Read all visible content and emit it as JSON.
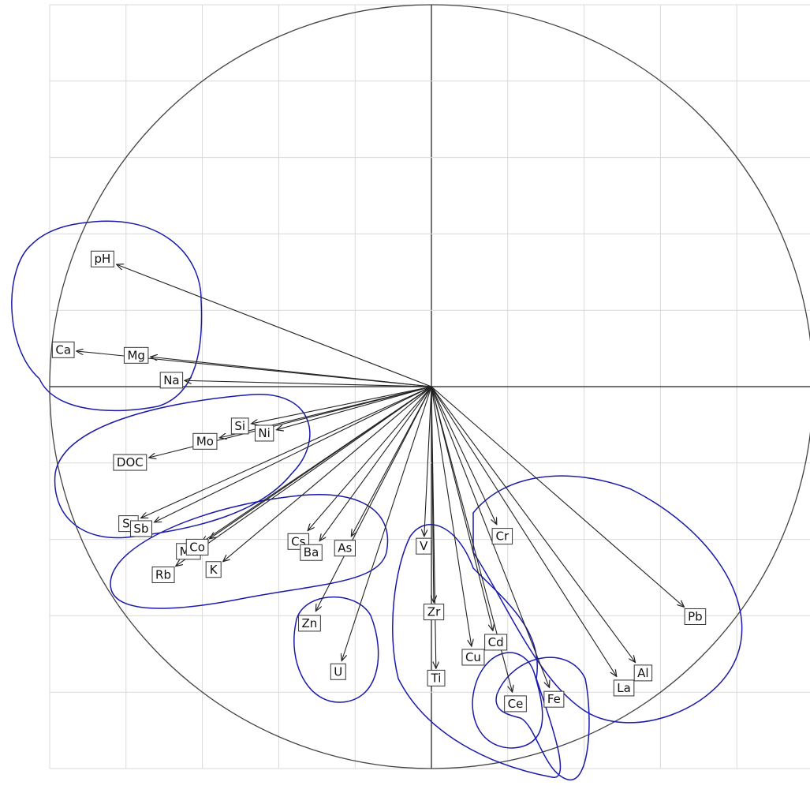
{
  "chart_data": {
    "type": "correlation-circle",
    "labels": [
      "pH",
      "Ca",
      "Mg",
      "Na",
      "Si",
      "Ni",
      "Mo",
      "DOC",
      "Sr",
      "Sb",
      "Mn",
      "Co",
      "Rb",
      "K",
      "Cs",
      "Ba",
      "As",
      "Zn",
      "U",
      "V",
      "Zr",
      "Ti",
      "Cu",
      "Cd",
      "Ce",
      "Fe",
      "Cr",
      "Pb",
      "Al",
      "La"
    ],
    "x": [
      -0.825,
      -0.93,
      -0.736,
      -0.647,
      -0.472,
      -0.406,
      -0.555,
      -0.74,
      -0.761,
      -0.726,
      -0.602,
      -0.581,
      -0.67,
      -0.546,
      -0.324,
      -0.293,
      -0.21,
      -0.303,
      -0.235,
      -0.019,
      0.006,
      0.012,
      0.105,
      0.161,
      0.212,
      0.309,
      0.171,
      0.662,
      0.534,
      0.485
    ],
    "y": [
      0.32,
      0.093,
      0.078,
      0.016,
      -0.097,
      -0.113,
      -0.134,
      -0.186,
      -0.344,
      -0.355,
      -0.408,
      -0.398,
      -0.47,
      -0.458,
      -0.377,
      -0.404,
      -0.392,
      -0.588,
      -0.718,
      -0.392,
      -0.565,
      -0.738,
      -0.68,
      -0.639,
      -0.8,
      -0.788,
      -0.361,
      -0.577,
      -0.722,
      -0.759
    ],
    "xlim": [
      -1,
      1
    ],
    "ylim": [
      -1,
      1
    ],
    "xticks": [
      -1,
      -0.8,
      -0.6,
      -0.4,
      -0.2,
      0,
      0.2,
      0.4,
      0.6,
      0.8,
      1
    ],
    "yticks": [
      -1,
      -0.8,
      -0.6,
      -0.4,
      -0.2,
      0,
      0.2,
      0.4,
      0.6,
      0.8,
      1
    ],
    "grid": true,
    "color": "#222222"
  }
}
